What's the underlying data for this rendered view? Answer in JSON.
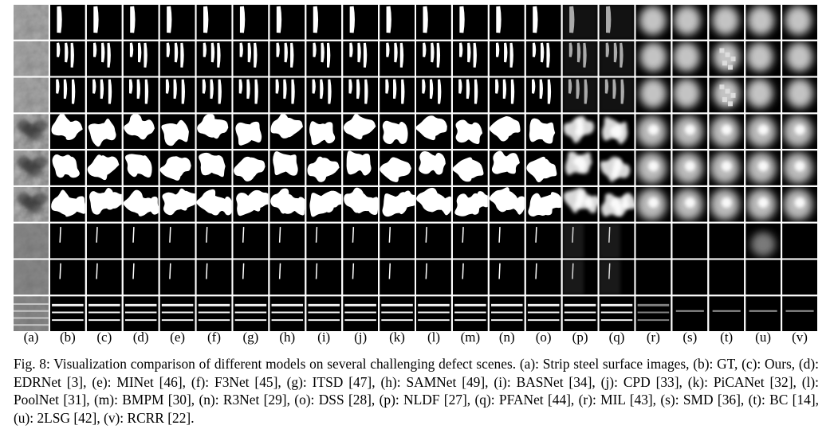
{
  "figure": {
    "columns": [
      "(a)",
      "(b)",
      "(c)",
      "(d)",
      "(e)",
      "(f)",
      "(g)",
      "(h)",
      "(i)",
      "(j)",
      "(k)",
      "(l)",
      "(m)",
      "(n)",
      "(o)",
      "(p)",
      "(q)",
      "(r)",
      "(s)",
      "(t)",
      "(u)",
      "(v)"
    ],
    "rows": 9,
    "colors": {
      "background": "#000000",
      "separator": "#ffffff",
      "mask": "#ffffff",
      "steel_gray": "#8a8a8a"
    }
  },
  "caption": {
    "label": "Fig. 8:",
    "text": "Visualization comparison of different models on several challenging defect scenes. (a): Strip steel surface images, (b): GT, (c): Ours, (d): EDRNet [3], (e): MINet [46], (f): F3Net [45], (g): ITSD [47], (h): SAMNet [49], (i): BASNet [34], (j): CPD [33], (k): PiCANet [32], (l): PoolNet [31], (m): BMPM [30], (n): R3Net [29], (o): DSS [28], (p): NLDF [27], (q): PFANet [44], (r): MIL [43], (s): SMD [36], (t): BC [14], (u): 2LSG [42], (v): RCRR [22]."
  }
}
